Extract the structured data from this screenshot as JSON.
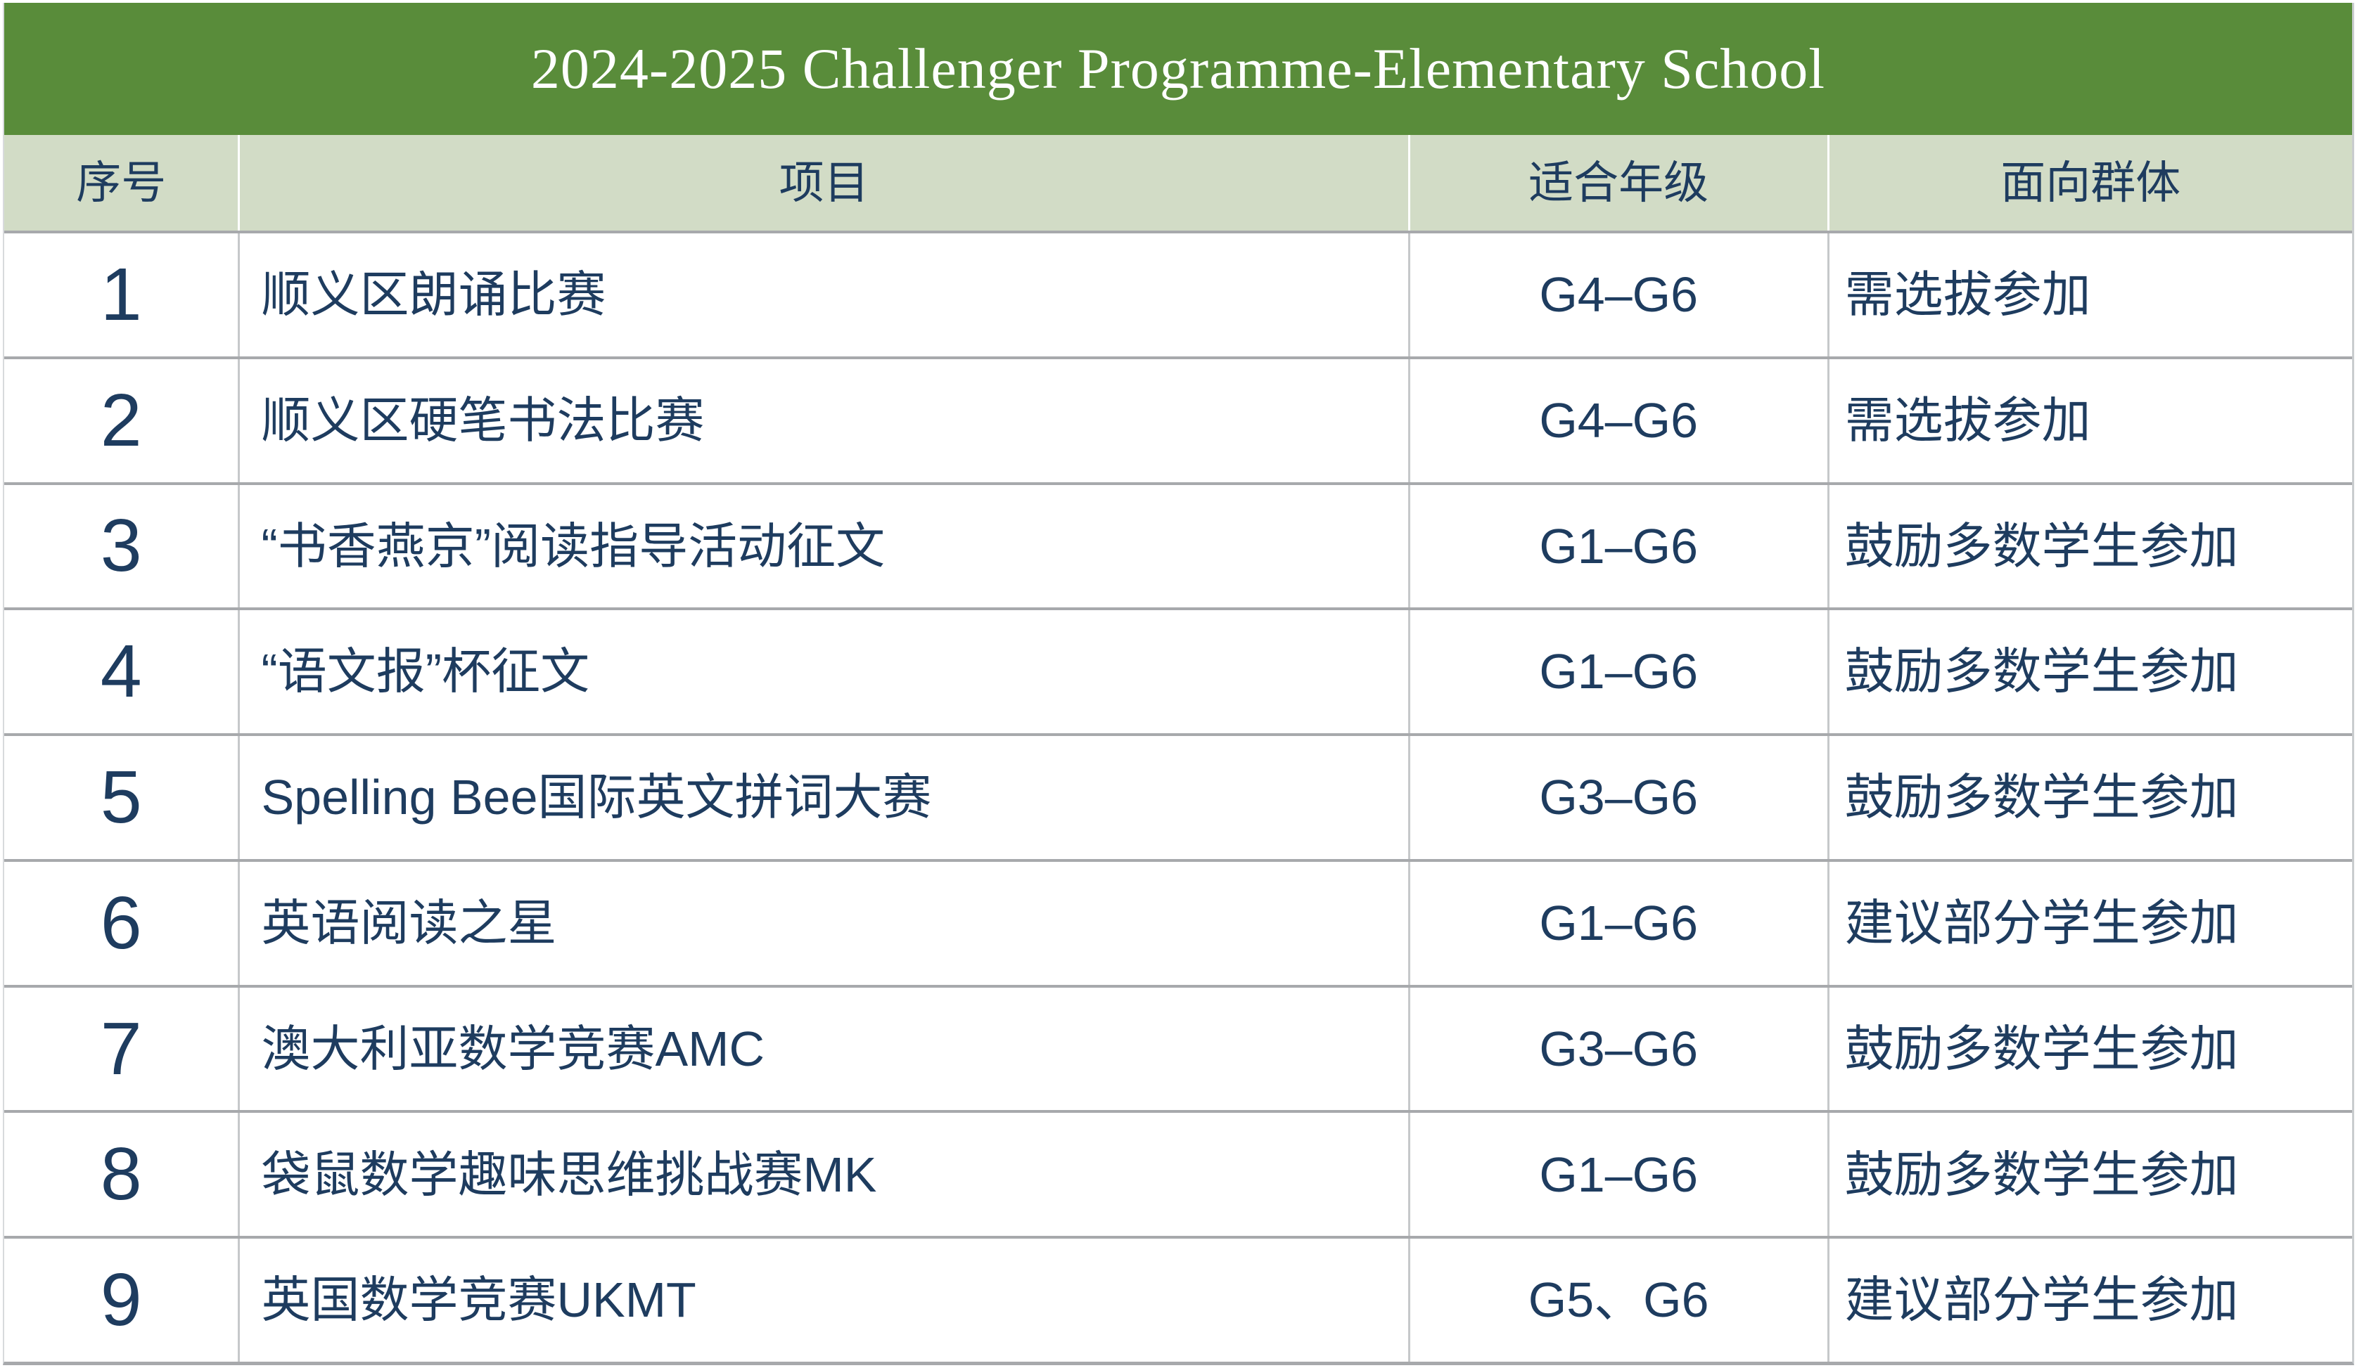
{
  "title_bar": {
    "text": "2024-2025 Challenger Programme-Elementary School"
  },
  "colors": {
    "title_bg": "#598C3A",
    "title_fg": "#FFFFFF",
    "header_bg": "#D2DCC6",
    "text_navy": "#1E3C5F",
    "border_horizontal": "#A7A9AC",
    "border_vertical": "#C6C8CA"
  },
  "table": {
    "header": {
      "columns": [
        "序号",
        "项目",
        "适合年级",
        "面向群体"
      ]
    },
    "rows": [
      {
        "index": "1",
        "project": "顺义区朗诵比赛",
        "grades": "G4–G6",
        "audience": "需选拔参加"
      },
      {
        "index": "2",
        "project": "顺义区硬笔书法比赛",
        "grades": "G4–G6",
        "audience": "需选拔参加"
      },
      {
        "index": "3",
        "project": "“书香燕京”阅读指导活动征文",
        "grades": "G1–G6",
        "audience": "鼓励多数学生参加"
      },
      {
        "index": "4",
        "project": "“语文报”杯征文",
        "grades": "G1–G6",
        "audience": "鼓励多数学生参加"
      },
      {
        "index": "5",
        "project": "Spelling Bee国际英文拼词大赛",
        "grades": "G3–G6",
        "audience": "鼓励多数学生参加"
      },
      {
        "index": "6",
        "project": "英语阅读之星",
        "grades": "G1–G6",
        "audience": "建议部分学生参加"
      },
      {
        "index": "7",
        "project": "澳大利亚数学竞赛AMC",
        "grades": "G3–G6",
        "audience": "鼓励多数学生参加"
      },
      {
        "index": "8",
        "project": "袋鼠数学趣味思维挑战赛MK",
        "grades": "G1–G6",
        "audience": "鼓励多数学生参加"
      },
      {
        "index": "9",
        "project": "英国数学竞赛UKMT",
        "grades": "G5、G6",
        "audience": "建议部分学生参加"
      }
    ]
  }
}
